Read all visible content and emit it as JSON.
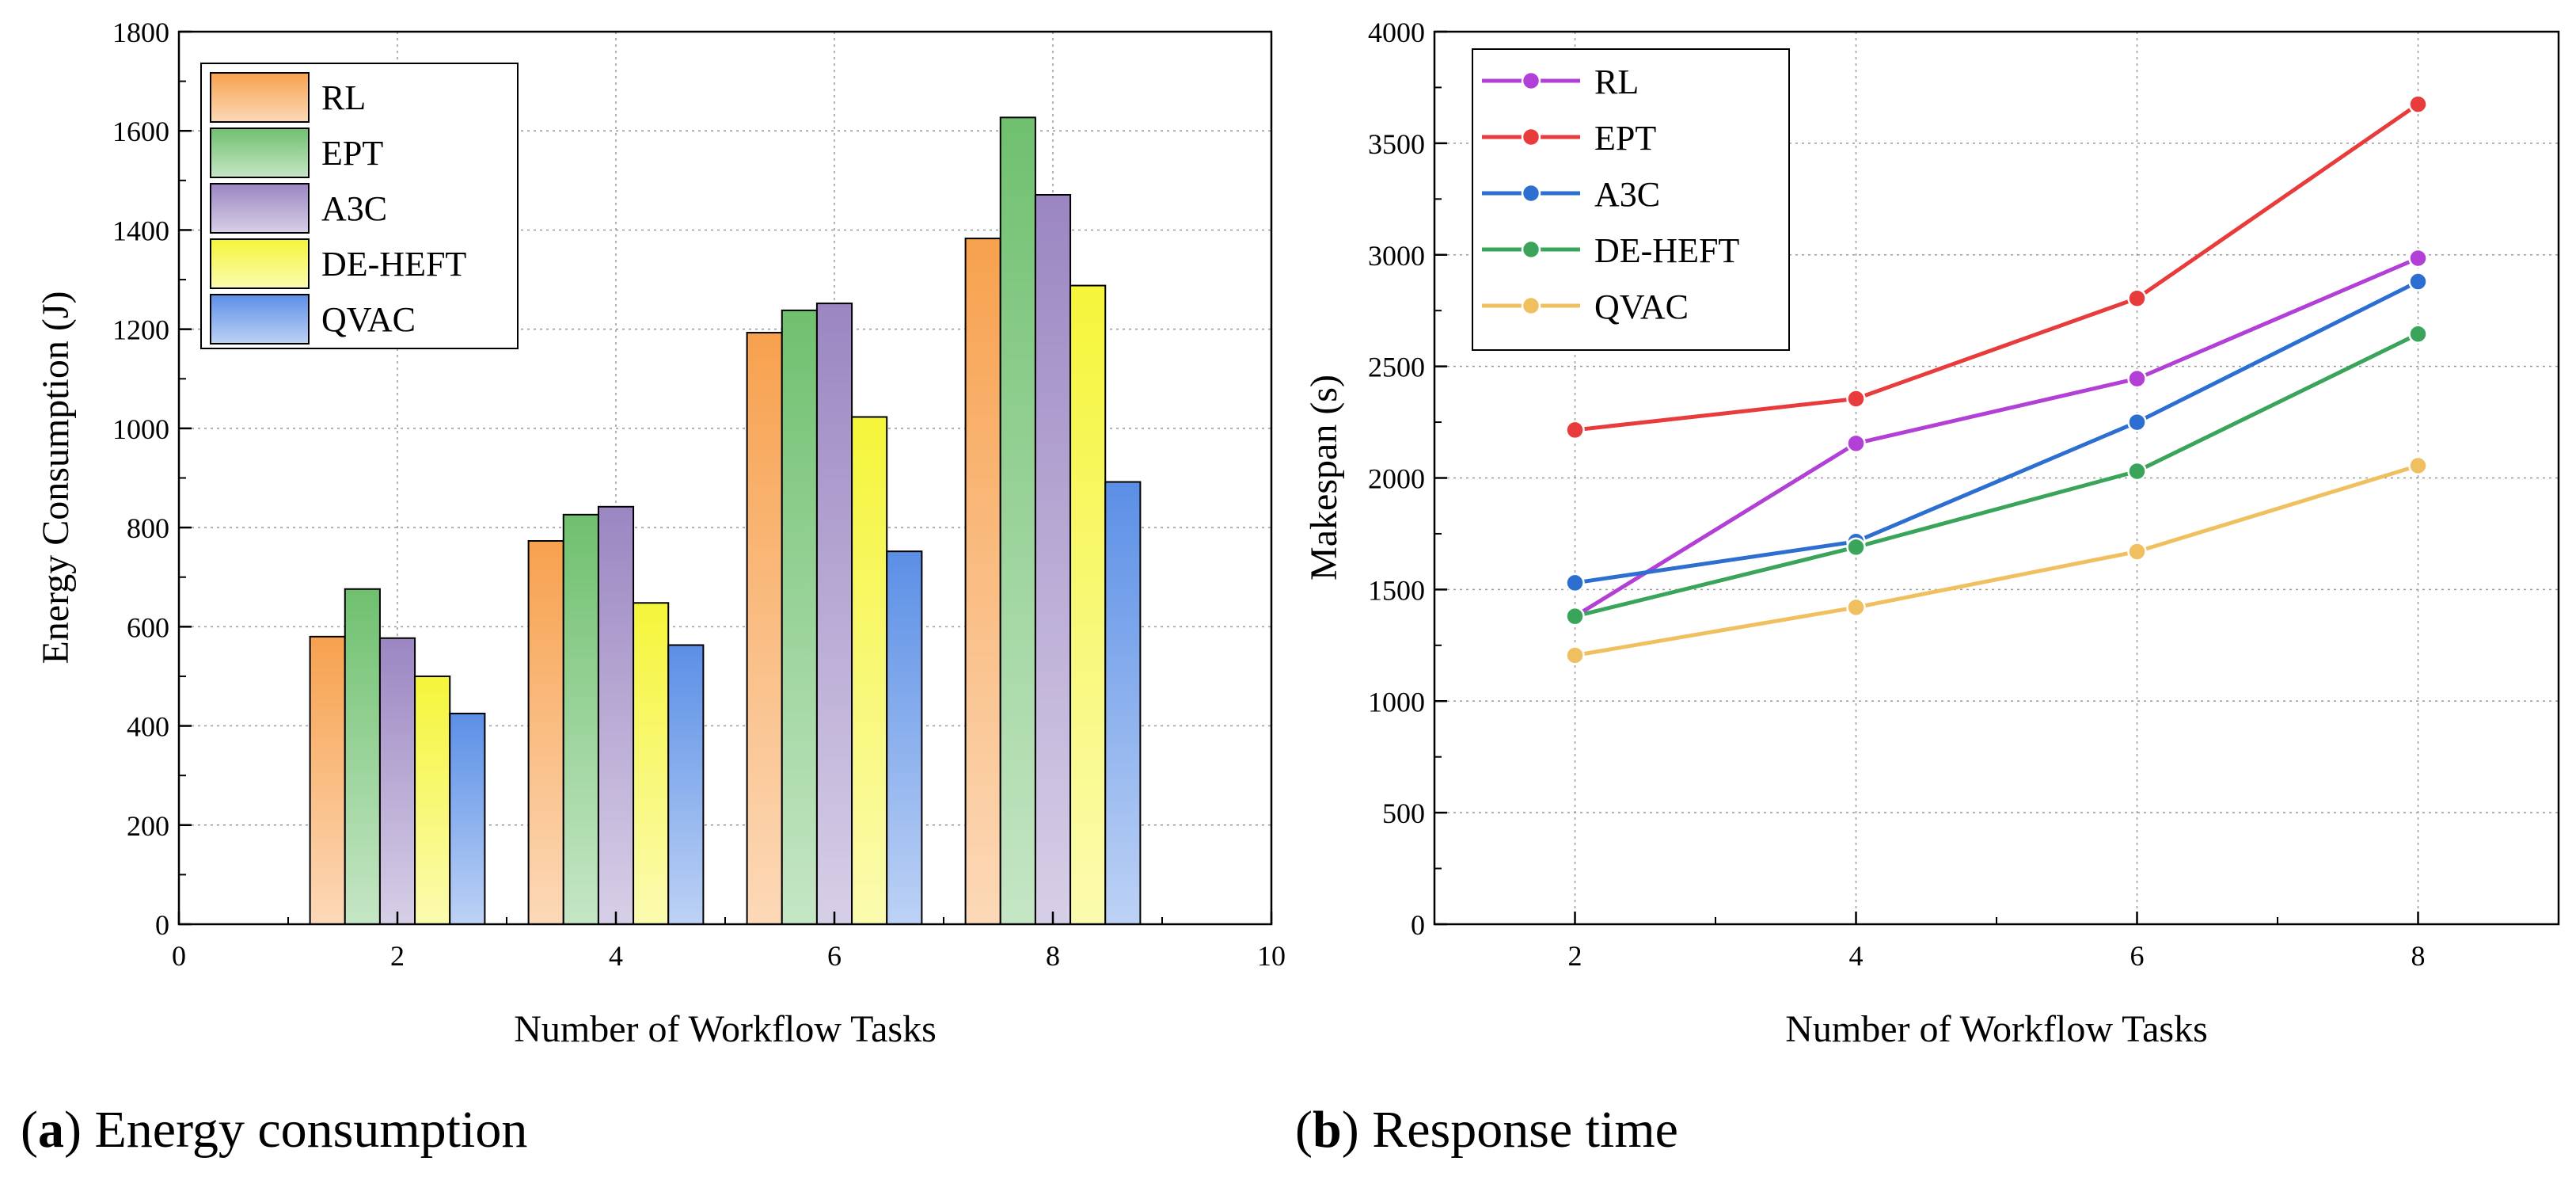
{
  "chart_data": [
    {
      "type": "bar",
      "caption_letter": "a",
      "caption_text": " Energy consumption",
      "xlabel": "Number of Workflow Tasks",
      "ylabel": "Energy Consumption (J)",
      "xlim": [
        0,
        10
      ],
      "ylim": [
        0,
        1800
      ],
      "xticks": [
        0,
        2,
        4,
        6,
        8,
        10
      ],
      "yticks": [
        0,
        200,
        400,
        600,
        800,
        1000,
        1200,
        1400,
        1600,
        1800
      ],
      "grid": true,
      "legend_position": "top-left",
      "categories": [
        2,
        4,
        6,
        8
      ],
      "series": [
        {
          "name": "RL",
          "color": "#f7a14e",
          "values": [
            580,
            773,
            1193,
            1383
          ]
        },
        {
          "name": "EPT",
          "color": "#6fc06f",
          "values": [
            676,
            826,
            1238,
            1627
          ]
        },
        {
          "name": "A3C",
          "color": "#9b86c2",
          "values": [
            577,
            842,
            1252,
            1471
          ]
        },
        {
          "name": "DE-HEFT",
          "color": "#f5f53a",
          "values": [
            500,
            648,
            1023,
            1288
          ]
        },
        {
          "name": "QVAC",
          "color": "#5b8fe6",
          "values": [
            425,
            563,
            752,
            892
          ]
        }
      ]
    },
    {
      "type": "line",
      "caption_letter": "b",
      "caption_text": " Response time",
      "xlabel": "Number of Workflow Tasks",
      "ylabel": "Makespan (s)",
      "xlim": [
        1,
        9
      ],
      "ylim": [
        0,
        4000
      ],
      "xticks": [
        2,
        4,
        6,
        8
      ],
      "yticks": [
        0,
        500,
        1000,
        1500,
        2000,
        2500,
        3000,
        3500,
        4000
      ],
      "grid": true,
      "legend_position": "top-left",
      "x": [
        2,
        4,
        6,
        8
      ],
      "series": [
        {
          "name": "RL",
          "color": "#b23fd6",
          "values": [
            1380,
            2155,
            2445,
            2985
          ]
        },
        {
          "name": "EPT",
          "color": "#e83c3c",
          "values": [
            2215,
            2355,
            2805,
            3675
          ]
        },
        {
          "name": "A3C",
          "color": "#2d6fd1",
          "values": [
            1530,
            1715,
            2250,
            2880
          ]
        },
        {
          "name": "DE-HEFT",
          "color": "#3aa55a",
          "values": [
            1380,
            1690,
            2030,
            2645
          ]
        },
        {
          "name": "QVAC",
          "color": "#f0c060",
          "values": [
            1205,
            1420,
            1670,
            2055
          ]
        }
      ]
    }
  ]
}
